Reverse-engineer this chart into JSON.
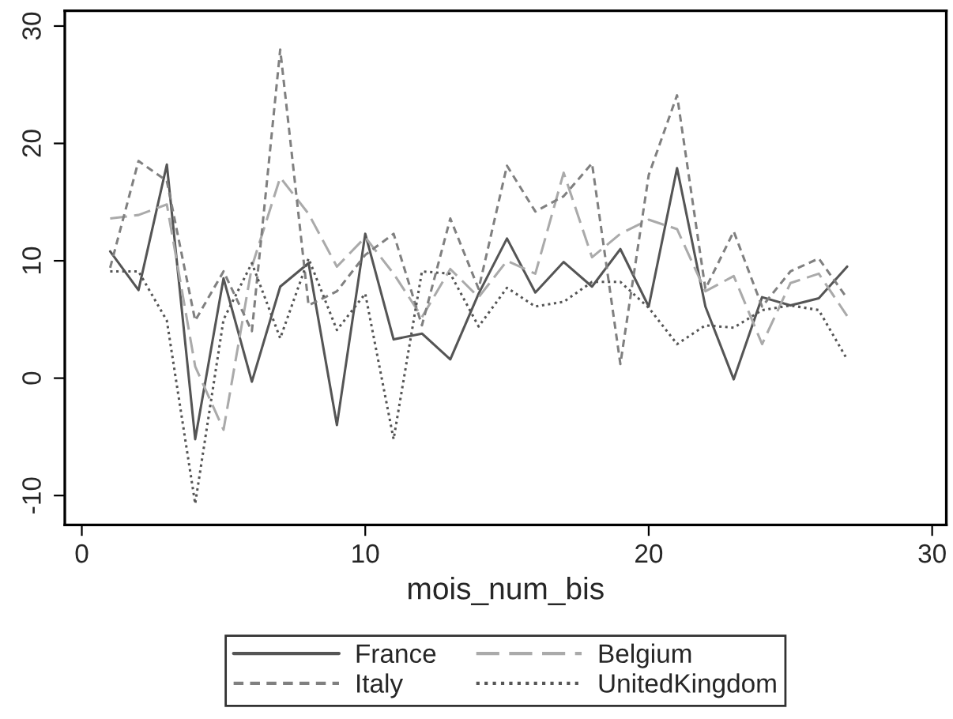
{
  "chart_data": {
    "type": "line",
    "xlabel": "mois_num_bis",
    "x": [
      1,
      2,
      3,
      4,
      5,
      6,
      7,
      8,
      9,
      10,
      11,
      12,
      13,
      14,
      15,
      16,
      17,
      18,
      19,
      20,
      21,
      22,
      23,
      24,
      25,
      26,
      27
    ],
    "series": [
      {
        "name": "France",
        "color": "#555555",
        "line_style": "solid",
        "values": [
          10.8,
          7.5,
          18.2,
          -5.2,
          8.5,
          -0.3,
          7.8,
          9.8,
          -4.0,
          12.3,
          3.3,
          3.8,
          1.6,
          7.2,
          11.9,
          7.3,
          9.9,
          7.8,
          11.0,
          6.1,
          17.9,
          6.1,
          -0.1,
          6.9,
          6.2,
          6.8,
          9.5
        ]
      },
      {
        "name": "Belgium",
        "color": "#aaaaaa",
        "line_style": "longdash",
        "values": [
          13.6,
          13.9,
          14.8,
          1.0,
          -4.4,
          9.5,
          17.1,
          14.0,
          9.5,
          12.0,
          8.9,
          5.2,
          9.3,
          6.9,
          10.0,
          8.9,
          17.5,
          10.3,
          12.3,
          13.5,
          12.7,
          7.4,
          8.7,
          2.9,
          8.1,
          8.9,
          5.3
        ]
      },
      {
        "name": "Italy",
        "color": "#808080",
        "line_style": "dashed",
        "values": [
          9.4,
          18.5,
          16.8,
          4.9,
          9.1,
          4.0,
          28.0,
          6.2,
          7.4,
          10.5,
          12.3,
          4.5,
          13.6,
          7.6,
          18.1,
          14.2,
          15.5,
          18.3,
          1.2,
          17.3,
          24.1,
          7.6,
          12.5,
          6.1,
          9.1,
          10.2,
          6.8
        ]
      },
      {
        "name": "UnitedKingdom",
        "color": "#555555",
        "line_style": "dotted",
        "values": [
          9.1,
          9.1,
          4.9,
          -10.7,
          5.0,
          9.8,
          3.4,
          10.2,
          4.1,
          7.2,
          -5.2,
          9.1,
          8.9,
          4.4,
          7.7,
          6.1,
          6.5,
          8.2,
          8.2,
          6.0,
          2.9,
          4.5,
          4.3,
          5.8,
          6.2,
          5.8,
          1.6
        ]
      }
    ],
    "xlim": [
      -0.6,
      30.5
    ],
    "ylim": [
      -12.5,
      31.3
    ],
    "xticks": [
      0,
      10,
      20,
      30
    ],
    "yticks": [
      -10,
      0,
      10,
      20,
      30
    ],
    "grid": false,
    "legend": "bottom",
    "marker": "none"
  }
}
